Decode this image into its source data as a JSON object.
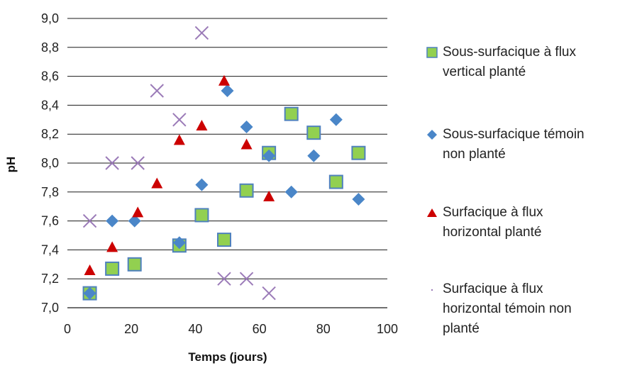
{
  "chart_data": {
    "type": "scatter",
    "title": "",
    "xlabel": "Temps (jours)",
    "ylabel": "pH",
    "xlim": [
      0,
      100
    ],
    "ylim": [
      7.0,
      9.0
    ],
    "xticks": [
      "0",
      "20",
      "40",
      "60",
      "80",
      "100"
    ],
    "yticks": [
      "7,0",
      "7,2",
      "7,4",
      "7,6",
      "7,8",
      "8,0",
      "8,2",
      "8,4",
      "8,6",
      "8,8",
      "9,0"
    ],
    "grid": "horizontal",
    "legend_position": "right",
    "series": [
      {
        "name": "Sous-surfacique à flux vertical planté",
        "marker": "square",
        "color": "#92d050",
        "edge_color": "#4f81bd",
        "points": [
          [
            7,
            7.1
          ],
          [
            14,
            7.27
          ],
          [
            21,
            7.3
          ],
          [
            35,
            7.43
          ],
          [
            42,
            7.64
          ],
          [
            49,
            7.47
          ],
          [
            56,
            7.81
          ],
          [
            63,
            8.07
          ],
          [
            70,
            8.34
          ],
          [
            77,
            8.21
          ],
          [
            84,
            7.87
          ],
          [
            91,
            8.07
          ]
        ]
      },
      {
        "name": "Sous-surfacique témoin non planté",
        "marker": "diamond",
        "color": "#4a86c8",
        "points": [
          [
            7,
            7.1
          ],
          [
            14,
            7.6
          ],
          [
            21,
            7.6
          ],
          [
            35,
            7.45
          ],
          [
            42,
            7.85
          ],
          [
            50,
            8.5
          ],
          [
            56,
            8.25
          ],
          [
            63,
            8.05
          ],
          [
            70,
            7.8
          ],
          [
            77,
            8.05
          ],
          [
            84,
            8.3
          ],
          [
            91,
            7.75
          ]
        ]
      },
      {
        "name": "Surfacique à flux horizontal planté",
        "marker": "triangle",
        "color": "#cc0000",
        "points": [
          [
            7,
            7.26
          ],
          [
            14,
            7.42
          ],
          [
            22,
            7.66
          ],
          [
            28,
            7.86
          ],
          [
            35,
            8.16
          ],
          [
            42,
            8.26
          ],
          [
            49,
            8.57
          ],
          [
            56,
            8.13
          ],
          [
            63,
            7.77
          ]
        ]
      },
      {
        "name": "Surfacique à flux horizontal témoin non planté",
        "marker": "x",
        "color": "#9b7bb8",
        "points": [
          [
            7,
            7.6
          ],
          [
            14,
            8.0
          ],
          [
            22,
            8.0
          ],
          [
            28,
            8.5
          ],
          [
            35,
            8.3
          ],
          [
            42,
            8.9
          ],
          [
            49,
            7.2
          ],
          [
            56,
            7.2
          ],
          [
            63,
            7.1
          ]
        ]
      }
    ]
  },
  "legend": {
    "items": [
      {
        "line1": "Sous-surfacique à flux",
        "line2": "vertical planté",
        "line3": ""
      },
      {
        "line1": "Sous-surfacique témoin",
        "line2": "non planté",
        "line3": ""
      },
      {
        "line1": "Surfacique à flux",
        "line2": "horizontal planté",
        "line3": ""
      },
      {
        "line1": "Surfacique à flux",
        "line2": "horizontal témoin non",
        "line3": "planté"
      }
    ]
  }
}
